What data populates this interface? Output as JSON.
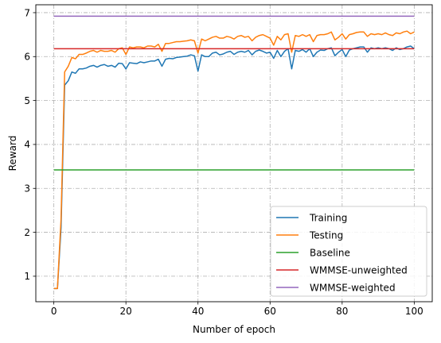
{
  "chart_data": {
    "type": "line",
    "title": "",
    "xlabel": "Number of epoch",
    "ylabel": "Reward",
    "xlim": [
      -5,
      105
    ],
    "ylim": [
      0.42,
      7.18
    ],
    "x_ticks": [
      0,
      20,
      40,
      60,
      80,
      100
    ],
    "y_ticks": [
      1,
      2,
      3,
      4,
      5,
      6,
      7
    ],
    "grid": true,
    "legend_position": "lower-right",
    "series": [
      {
        "name": "Training",
        "color": "#1f77b4",
        "x": [
          0,
          1,
          2,
          3,
          4,
          5,
          6,
          7,
          8,
          9,
          10,
          11,
          12,
          13,
          14,
          15,
          16,
          17,
          18,
          19,
          20,
          21,
          22,
          23,
          24,
          25,
          26,
          27,
          28,
          29,
          30,
          31,
          32,
          33,
          34,
          35,
          36,
          37,
          38,
          39,
          40,
          41,
          42,
          43,
          44,
          45,
          46,
          47,
          48,
          49,
          50,
          51,
          52,
          53,
          54,
          55,
          56,
          57,
          58,
          59,
          60,
          61,
          62,
          63,
          64,
          65,
          66,
          67,
          68,
          69,
          70,
          71,
          72,
          73,
          74,
          75,
          76,
          77,
          78,
          79,
          80,
          81,
          82,
          83,
          84,
          85,
          86,
          87,
          88,
          89,
          90,
          91,
          92,
          93,
          94,
          95,
          96,
          97,
          98,
          99,
          100
        ],
        "values": [
          0.72,
          0.72,
          2.1,
          5.35,
          5.45,
          5.65,
          5.62,
          5.72,
          5.72,
          5.74,
          5.78,
          5.8,
          5.76,
          5.8,
          5.82,
          5.78,
          5.8,
          5.76,
          5.85,
          5.84,
          5.72,
          5.86,
          5.85,
          5.84,
          5.88,
          5.86,
          5.88,
          5.9,
          5.9,
          5.94,
          5.78,
          5.94,
          5.96,
          5.95,
          5.98,
          5.99,
          6.0,
          6.01,
          6.04,
          6.02,
          5.67,
          6.04,
          6.0,
          6.0,
          6.08,
          6.1,
          6.04,
          6.06,
          6.1,
          6.12,
          6.05,
          6.1,
          6.12,
          6.1,
          6.14,
          6.04,
          6.12,
          6.15,
          6.12,
          6.08,
          6.1,
          5.96,
          6.14,
          6.0,
          6.12,
          6.18,
          5.72,
          6.14,
          6.12,
          6.16,
          6.1,
          6.18,
          6.0,
          6.1,
          6.15,
          6.14,
          6.18,
          6.2,
          6.02,
          6.1,
          6.16,
          6.0,
          6.15,
          6.18,
          6.2,
          6.22,
          6.22,
          6.1,
          6.2,
          6.18,
          6.2,
          6.18,
          6.2,
          6.18,
          6.14,
          6.2,
          6.16,
          6.18,
          6.22,
          6.24,
          6.18
        ]
      },
      {
        "name": "Testing",
        "color": "#ff7f0e",
        "x": [
          0,
          1,
          2,
          3,
          4,
          5,
          6,
          7,
          8,
          9,
          10,
          11,
          12,
          13,
          14,
          15,
          16,
          17,
          18,
          19,
          20,
          21,
          22,
          23,
          24,
          25,
          26,
          27,
          28,
          29,
          30,
          31,
          32,
          33,
          34,
          35,
          36,
          37,
          38,
          39,
          40,
          41,
          42,
          43,
          44,
          45,
          46,
          47,
          48,
          49,
          50,
          51,
          52,
          53,
          54,
          55,
          56,
          57,
          58,
          59,
          60,
          61,
          62,
          63,
          64,
          65,
          66,
          67,
          68,
          69,
          70,
          71,
          72,
          73,
          74,
          75,
          76,
          77,
          78,
          79,
          80,
          81,
          82,
          83,
          84,
          85,
          86,
          87,
          88,
          89,
          90,
          91,
          92,
          93,
          94,
          95,
          96,
          97,
          98,
          99,
          100
        ],
        "values": [
          0.72,
          0.72,
          2.3,
          5.65,
          5.78,
          5.98,
          5.95,
          6.05,
          6.05,
          6.08,
          6.12,
          6.14,
          6.1,
          6.14,
          6.12,
          6.12,
          6.14,
          6.1,
          6.18,
          6.2,
          6.05,
          6.22,
          6.2,
          6.22,
          6.22,
          6.2,
          6.24,
          6.24,
          6.22,
          6.28,
          6.12,
          6.3,
          6.3,
          6.32,
          6.34,
          6.34,
          6.35,
          6.36,
          6.38,
          6.36,
          6.08,
          6.4,
          6.36,
          6.4,
          6.44,
          6.46,
          6.42,
          6.42,
          6.46,
          6.44,
          6.4,
          6.46,
          6.48,
          6.44,
          6.46,
          6.36,
          6.44,
          6.48,
          6.5,
          6.46,
          6.42,
          6.26,
          6.46,
          6.38,
          6.5,
          6.52,
          6.1,
          6.48,
          6.46,
          6.5,
          6.46,
          6.5,
          6.34,
          6.48,
          6.5,
          6.5,
          6.52,
          6.56,
          6.38,
          6.44,
          6.52,
          6.4,
          6.5,
          6.52,
          6.55,
          6.56,
          6.56,
          6.46,
          6.52,
          6.5,
          6.52,
          6.5,
          6.54,
          6.5,
          6.48,
          6.54,
          6.52,
          6.56,
          6.58,
          6.52,
          6.56
        ]
      },
      {
        "name": "Baseline",
        "color": "#2ca02c",
        "x": [
          0,
          100
        ],
        "values": [
          3.42,
          3.42
        ]
      },
      {
        "name": "WMMSE-unweighted",
        "color": "#d62728",
        "x": [
          0,
          100
        ],
        "values": [
          6.18,
          6.18
        ]
      },
      {
        "name": "WMMSE-weighted",
        "color": "#9467bd",
        "x": [
          0,
          100
        ],
        "values": [
          6.92,
          6.92
        ]
      }
    ]
  }
}
